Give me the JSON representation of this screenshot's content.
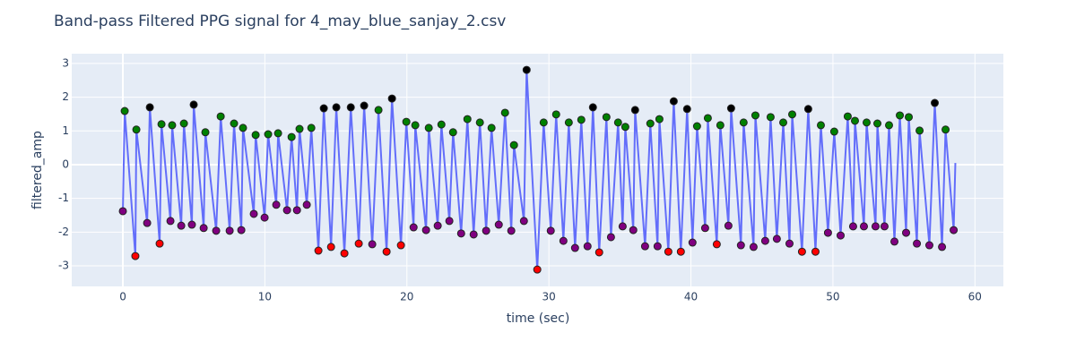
{
  "chart_data": {
    "type": "line",
    "title": "Band-pass Filtered PPG signal for 4_may_blue_sanjay_2.csv",
    "x_label": "time (sec)",
    "y_label": "filtered_amp",
    "xlim": [
      -3.6,
      62
    ],
    "ylim": [
      -3.61,
      3.29
    ],
    "xticks": [
      0,
      10,
      20,
      30,
      40,
      50,
      60
    ],
    "yticks": [
      -3,
      -2,
      -1,
      0,
      1,
      2,
      3
    ],
    "grid": true,
    "series": [
      {
        "mode": "lines",
        "color": "#636efa",
        "x": [
          0.0,
          0.13,
          0.88,
          0.95,
          1.71,
          1.9,
          2.59,
          2.72,
          3.35,
          3.47,
          4.11,
          4.3,
          4.86,
          4.99,
          5.69,
          5.81,
          6.57,
          6.89,
          7.52,
          7.83,
          8.34,
          8.46,
          9.22,
          9.35,
          9.98,
          10.23,
          10.8,
          10.93,
          11.56,
          11.88,
          12.26,
          12.44,
          12.95,
          13.27,
          13.77,
          14.15,
          14.66,
          15.03,
          15.6,
          16.05,
          16.61,
          16.99,
          17.56,
          18.0,
          18.57,
          18.95,
          19.58,
          19.96,
          20.47,
          20.59,
          21.35,
          21.54,
          22.17,
          22.43,
          22.99,
          23.25,
          23.82,
          24.26,
          24.7,
          25.14,
          25.58,
          25.96,
          26.47,
          26.91,
          27.35,
          27.54,
          28.24,
          28.43,
          29.18,
          29.63,
          30.13,
          30.51,
          31.02,
          31.4,
          31.84,
          32.28,
          32.72,
          33.1,
          33.54,
          34.05,
          34.37,
          34.87,
          35.19,
          35.38,
          35.94,
          36.07,
          36.77,
          37.14,
          37.65,
          37.78,
          38.41,
          38.79,
          39.29,
          39.73,
          40.11,
          40.43,
          41.0,
          41.19,
          41.82,
          42.07,
          42.64,
          42.83,
          43.52,
          43.71,
          44.41,
          44.54,
          45.23,
          45.61,
          46.05,
          46.5,
          46.94,
          47.13,
          47.82,
          48.26,
          48.77,
          49.15,
          49.65,
          50.09,
          50.54,
          51.04,
          51.42,
          51.55,
          52.18,
          52.37,
          53.0,
          53.13,
          53.63,
          53.95,
          54.33,
          54.71,
          55.15,
          55.34,
          55.91,
          56.1,
          56.79,
          57.17,
          57.68,
          57.93,
          58.5,
          58.62
        ],
        "values": [
          -1.38,
          1.59,
          -2.71,
          1.04,
          -1.73,
          1.7,
          -2.34,
          1.2,
          -1.67,
          1.17,
          -1.81,
          1.22,
          -1.78,
          1.78,
          -1.88,
          0.96,
          -1.96,
          1.43,
          -1.96,
          1.22,
          -1.94,
          1.09,
          -1.46,
          0.88,
          -1.57,
          0.9,
          -1.19,
          0.93,
          -1.35,
          0.82,
          -1.35,
          1.06,
          -1.19,
          1.09,
          -2.55,
          1.67,
          -2.44,
          1.7,
          -2.63,
          1.7,
          -2.34,
          1.75,
          -2.36,
          1.62,
          -2.58,
          1.96,
          -2.39,
          1.27,
          -1.86,
          1.17,
          -1.94,
          1.09,
          -1.81,
          1.19,
          -1.67,
          0.96,
          -2.04,
          1.35,
          -2.07,
          1.25,
          -1.96,
          1.09,
          -1.78,
          1.54,
          -1.96,
          0.58,
          -1.67,
          2.81,
          -3.11,
          1.25,
          -1.96,
          1.49,
          -2.26,
          1.25,
          -2.47,
          1.33,
          -2.42,
          1.7,
          -2.6,
          1.41,
          -2.15,
          1.25,
          -1.83,
          1.12,
          -1.94,
          1.62,
          -2.42,
          1.22,
          -2.42,
          1.35,
          -2.58,
          1.88,
          -2.58,
          1.65,
          -2.31,
          1.14,
          -1.88,
          1.38,
          -2.36,
          1.17,
          -1.81,
          1.67,
          -2.39,
          1.25,
          -2.44,
          1.46,
          -2.26,
          1.41,
          -2.2,
          1.25,
          -2.34,
          1.49,
          -2.58,
          1.65,
          -2.58,
          1.17,
          -2.02,
          0.98,
          -2.1,
          1.43,
          -1.83,
          1.3,
          -1.83,
          1.25,
          -1.83,
          1.22,
          -1.83,
          1.17,
          -2.28,
          1.46,
          -2.02,
          1.41,
          -2.34,
          1.01,
          -2.39,
          1.83,
          -2.44,
          1.04,
          -1.94,
          0.05
        ]
      },
      {
        "mode": "markers",
        "color": "#008000",
        "x": [
          0.13,
          0.95,
          2.72,
          3.47,
          4.3,
          5.81,
          6.89,
          7.83,
          8.46,
          9.35,
          10.23,
          10.93,
          11.88,
          12.44,
          13.27,
          18.0,
          19.96,
          20.59,
          21.54,
          22.43,
          23.25,
          24.26,
          25.14,
          25.96,
          26.91,
          27.54,
          29.63,
          30.51,
          31.4,
          32.28,
          34.05,
          34.87,
          35.38,
          37.14,
          37.78,
          40.43,
          41.19,
          42.07,
          43.71,
          44.54,
          45.61,
          46.5,
          47.13,
          49.15,
          50.09,
          51.04,
          51.55,
          52.37,
          53.13,
          53.95,
          54.71,
          55.34,
          56.1,
          57.93
        ],
        "values": [
          1.59,
          1.04,
          1.2,
          1.17,
          1.22,
          0.96,
          1.43,
          1.22,
          1.09,
          0.88,
          0.9,
          0.93,
          0.82,
          1.06,
          1.09,
          1.62,
          1.27,
          1.17,
          1.09,
          1.19,
          0.96,
          1.35,
          1.25,
          1.09,
          1.54,
          0.58,
          1.25,
          1.49,
          1.25,
          1.33,
          1.41,
          1.25,
          1.12,
          1.22,
          1.35,
          1.14,
          1.38,
          1.17,
          1.25,
          1.46,
          1.41,
          1.25,
          1.49,
          1.17,
          0.98,
          1.43,
          1.3,
          1.25,
          1.22,
          1.17,
          1.46,
          1.41,
          1.01,
          1.04
        ]
      },
      {
        "mode": "markers",
        "color": "#000000",
        "x": [
          1.9,
          4.99,
          14.15,
          15.03,
          16.05,
          16.99,
          18.95,
          28.43,
          33.1,
          36.07,
          38.79,
          39.73,
          42.83,
          48.26,
          57.17
        ],
        "values": [
          1.7,
          1.78,
          1.67,
          1.7,
          1.7,
          1.75,
          1.96,
          2.81,
          1.7,
          1.62,
          1.88,
          1.65,
          1.67,
          1.65,
          1.83
        ]
      },
      {
        "mode": "markers",
        "color": "#ff0000",
        "x": [
          0.88,
          2.59,
          13.77,
          14.66,
          15.6,
          16.61,
          18.57,
          19.58,
          29.18,
          33.54,
          38.41,
          39.29,
          41.82,
          47.82,
          48.77
        ],
        "values": [
          -2.71,
          -2.34,
          -2.55,
          -2.44,
          -2.63,
          -2.34,
          -2.58,
          -2.39,
          -3.11,
          -2.6,
          -2.58,
          -2.58,
          -2.36,
          -2.58,
          -2.58
        ]
      },
      {
        "mode": "markers",
        "color": "#800080",
        "x": [
          0.0,
          1.71,
          3.35,
          4.11,
          4.86,
          5.69,
          6.57,
          7.52,
          8.34,
          9.22,
          9.98,
          10.8,
          11.56,
          12.26,
          12.95,
          17.56,
          20.47,
          21.35,
          22.17,
          22.99,
          23.82,
          24.7,
          25.58,
          26.47,
          27.35,
          28.24,
          30.13,
          31.02,
          31.84,
          32.72,
          34.37,
          35.19,
          35.94,
          36.77,
          37.65,
          40.11,
          41.0,
          42.64,
          43.52,
          44.41,
          45.23,
          46.05,
          46.94,
          49.65,
          50.54,
          51.42,
          52.18,
          53.0,
          53.63,
          54.33,
          55.15,
          55.91,
          56.79,
          57.68,
          58.5
        ],
        "values": [
          -1.38,
          -1.73,
          -1.67,
          -1.81,
          -1.78,
          -1.88,
          -1.96,
          -1.96,
          -1.94,
          -1.46,
          -1.57,
          -1.19,
          -1.35,
          -1.35,
          -1.19,
          -2.36,
          -1.86,
          -1.94,
          -1.81,
          -1.67,
          -2.04,
          -2.07,
          -1.96,
          -1.78,
          -1.96,
          -1.67,
          -1.96,
          -2.26,
          -2.47,
          -2.42,
          -2.15,
          -1.83,
          -1.94,
          -2.42,
          -2.42,
          -2.31,
          -1.88,
          -1.81,
          -2.39,
          -2.44,
          -2.26,
          -2.2,
          -2.34,
          -2.02,
          -2.1,
          -1.83,
          -1.83,
          -1.83,
          -1.83,
          -2.28,
          -2.02,
          -2.34,
          -2.39,
          -2.44,
          -1.94
        ]
      }
    ]
  }
}
